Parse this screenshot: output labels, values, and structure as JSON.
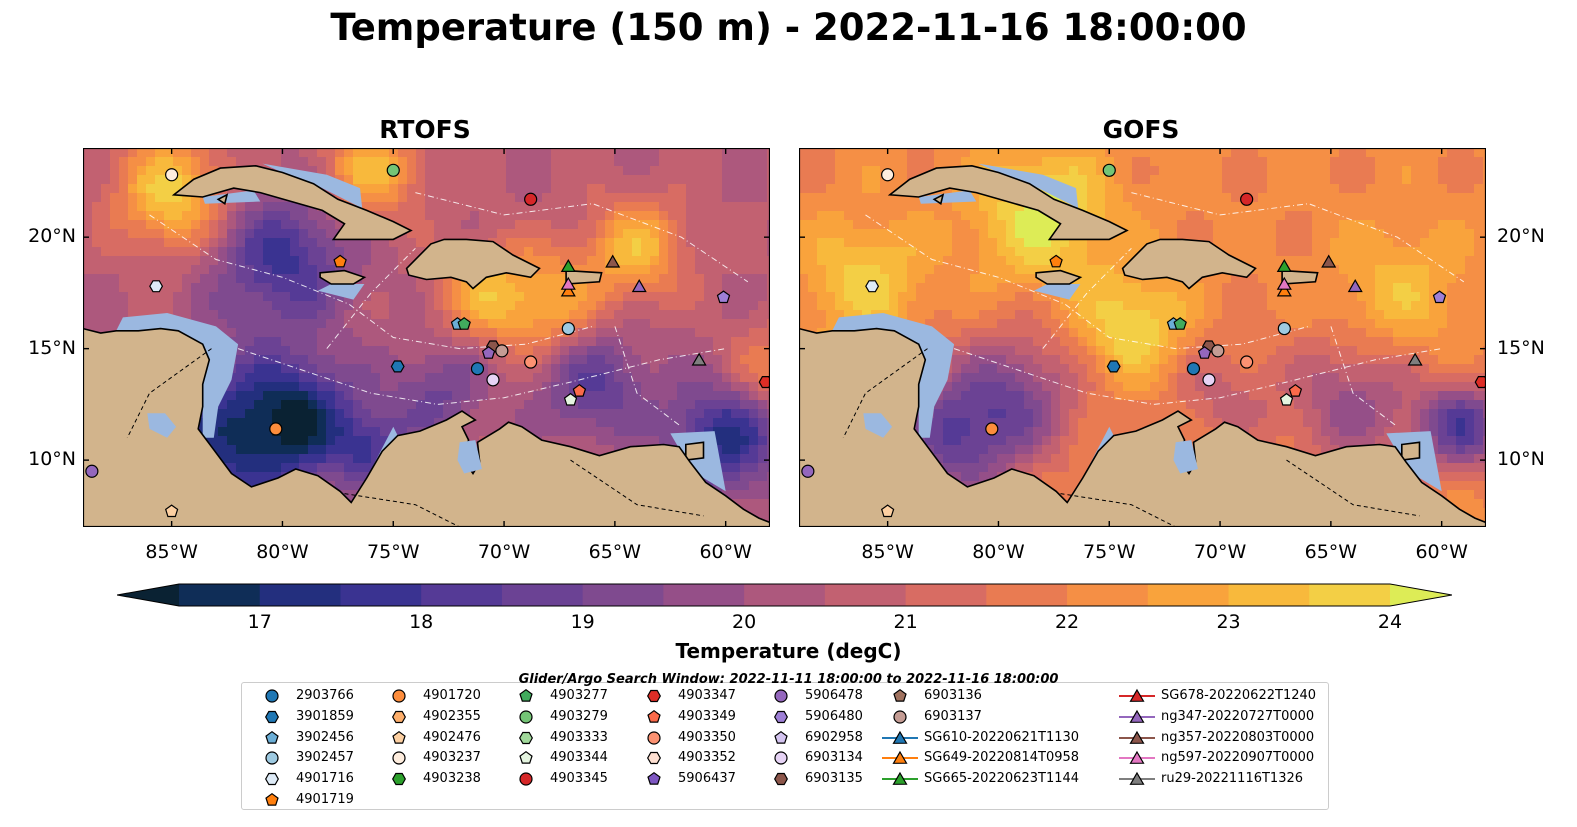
{
  "title": "Temperature (150 m) - 2022-11-16 18:00:00",
  "panels": [
    {
      "title": "RTOFS"
    },
    {
      "title": "GOFS"
    }
  ],
  "map": {
    "lon_ticks": [
      "85°W",
      "80°W",
      "75°W",
      "70°W",
      "65°W",
      "60°W"
    ],
    "lat_ticks": [
      "20°N",
      "15°N",
      "10°N"
    ],
    "lon_range": [
      -89,
      -58
    ],
    "lat_range": [
      7,
      24
    ],
    "land_color": "#d2b48c",
    "shelf_color": "#9bb8e0"
  },
  "colorbar": {
    "label": "Temperature (degC)",
    "ticks": [
      "17",
      "18",
      "19",
      "20",
      "21",
      "22",
      "23",
      "24"
    ],
    "range": [
      17,
      24.5
    ],
    "colors": [
      "#0a2233",
      "#0f2d57",
      "#232f7e",
      "#3a3391",
      "#553a96",
      "#6b4294",
      "#7f4a8f",
      "#954f88",
      "#ad587d",
      "#c26171",
      "#d86c63",
      "#e97b52",
      "#f58f45",
      "#f9a33c",
      "#f8b93c",
      "#f3cf45",
      "#ddec56"
    ]
  },
  "search_window": "Glider/Argo Search Window: 2022-11-11 18:00:00 to 2022-11-16 18:00:00",
  "legend": {
    "columns": [
      [
        {
          "label": "2903766",
          "marker": "circle",
          "color": "#1f77b4"
        },
        {
          "label": "3901859",
          "marker": "hexagon",
          "color": "#1f77b4"
        },
        {
          "label": "3902456",
          "marker": "pentagon",
          "color": "#6baed6"
        },
        {
          "label": "3902457",
          "marker": "circle",
          "color": "#9ecae1"
        },
        {
          "label": "4901716",
          "marker": "hexagon",
          "color": "#deebf7"
        },
        {
          "label": "4901719",
          "marker": "pentagon",
          "color": "#ff7f0e"
        }
      ],
      [
        {
          "label": "4901720",
          "marker": "circle",
          "color": "#fd8d3c"
        },
        {
          "label": "4902355",
          "marker": "hexagon",
          "color": "#fdae6b"
        },
        {
          "label": "4902476",
          "marker": "pentagon",
          "color": "#fdd0a2"
        },
        {
          "label": "4903237",
          "marker": "circle",
          "color": "#feedde"
        },
        {
          "label": "4903238",
          "marker": "hexagon",
          "color": "#2ca02c"
        }
      ],
      [
        {
          "label": "4903277",
          "marker": "pentagon",
          "color": "#41ab5d"
        },
        {
          "label": "4903279",
          "marker": "circle",
          "color": "#74c476"
        },
        {
          "label": "4903333",
          "marker": "hexagon",
          "color": "#a1d99b"
        },
        {
          "label": "4903344",
          "marker": "pentagon",
          "color": "#e5f5e0"
        },
        {
          "label": "4903345",
          "marker": "circle",
          "color": "#d62728"
        }
      ],
      [
        {
          "label": "4903347",
          "marker": "hexagon",
          "color": "#de2d26"
        },
        {
          "label": "4903349",
          "marker": "pentagon",
          "color": "#fb6a4a"
        },
        {
          "label": "4903350",
          "marker": "circle",
          "color": "#fc9272"
        },
        {
          "label": "4903352",
          "marker": "hexagon",
          "color": "#fee0d2"
        },
        {
          "label": "5906437",
          "marker": "pentagon",
          "color": "#7e57c2"
        }
      ],
      [
        {
          "label": "5906478",
          "marker": "circle",
          "color": "#9467bd"
        },
        {
          "label": "5906480",
          "marker": "hexagon",
          "color": "#9e7fd6"
        },
        {
          "label": "6902958",
          "marker": "pentagon",
          "color": "#d4c4f0"
        },
        {
          "label": "6903134",
          "marker": "circle",
          "color": "#e6d3f5"
        },
        {
          "label": "6903135",
          "marker": "hexagon",
          "color": "#8c564b"
        }
      ],
      [
        {
          "label": "6903136",
          "marker": "pentagon",
          "color": "#a0725f"
        },
        {
          "label": "6903137",
          "marker": "circle",
          "color": "#c49c94"
        },
        {
          "label": "SG610-20220621T1130",
          "marker": "triangle-line",
          "color": "#1f77b4"
        },
        {
          "label": "SG649-20220814T0958",
          "marker": "triangle-line",
          "color": "#ff7f0e"
        },
        {
          "label": "SG665-20220623T1144",
          "marker": "triangle-line",
          "color": "#2ca02c"
        }
      ],
      [
        {
          "label": "SG678-20220622T1240",
          "marker": "triangle-line",
          "color": "#d62728"
        },
        {
          "label": "ng347-20220727T0000",
          "marker": "triangle-line",
          "color": "#9467bd"
        },
        {
          "label": "ng357-20220803T0000",
          "marker": "triangle-line",
          "color": "#8c564b"
        },
        {
          "label": "ng597-20220907T0000",
          "marker": "triangle-line",
          "color": "#e377c2"
        },
        {
          "label": "ru29-20221116T1326",
          "marker": "triangle-line",
          "color": "#7f7f7f"
        }
      ]
    ]
  },
  "observations": [
    {
      "lon": -85.0,
      "lat": 22.8,
      "marker": "circle",
      "color": "#feedde"
    },
    {
      "lon": -75.0,
      "lat": 23.0,
      "marker": "circle",
      "color": "#74c476"
    },
    {
      "lon": -68.8,
      "lat": 21.7,
      "marker": "circle",
      "color": "#d62728"
    },
    {
      "lon": -85.7,
      "lat": 17.8,
      "marker": "hexagon",
      "color": "#deebf7"
    },
    {
      "lon": -77.4,
      "lat": 18.9,
      "marker": "pentagon",
      "color": "#ff7f0e"
    },
    {
      "lon": -72.1,
      "lat": 16.1,
      "marker": "pentagon",
      "color": "#6baed6"
    },
    {
      "lon": -71.8,
      "lat": 16.1,
      "marker": "pentagon",
      "color": "#41ab5d"
    },
    {
      "lon": -67.1,
      "lat": 15.9,
      "marker": "circle",
      "color": "#9ecae1"
    },
    {
      "lon": -60.1,
      "lat": 17.3,
      "marker": "pentagon",
      "color": "#9e7fd6"
    },
    {
      "lon": -74.8,
      "lat": 14.2,
      "marker": "hexagon",
      "color": "#1f77b4"
    },
    {
      "lon": -71.2,
      "lat": 14.1,
      "marker": "circle",
      "color": "#1f77b4"
    },
    {
      "lon": -70.5,
      "lat": 15.1,
      "marker": "hexagon",
      "color": "#8c564b"
    },
    {
      "lon": -70.1,
      "lat": 14.9,
      "marker": "circle",
      "color": "#c49c94"
    },
    {
      "lon": -70.7,
      "lat": 14.8,
      "marker": "pentagon",
      "color": "#9467bd"
    },
    {
      "lon": -70.5,
      "lat": 13.6,
      "marker": "circle",
      "color": "#e6d3f5"
    },
    {
      "lon": -68.8,
      "lat": 14.4,
      "marker": "circle",
      "color": "#fc9272"
    },
    {
      "lon": -66.6,
      "lat": 13.1,
      "marker": "pentagon",
      "color": "#fb6a4a"
    },
    {
      "lon": -67.0,
      "lat": 12.7,
      "marker": "pentagon",
      "color": "#e5f5e0"
    },
    {
      "lon": -80.3,
      "lat": 11.4,
      "marker": "circle",
      "color": "#fd8d3c"
    },
    {
      "lon": -88.6,
      "lat": 9.5,
      "marker": "circle",
      "color": "#9467bd"
    },
    {
      "lon": -85.0,
      "lat": 7.7,
      "marker": "pentagon",
      "color": "#fdd0a2"
    },
    {
      "lon": -58.2,
      "lat": 13.5,
      "marker": "hexagon",
      "color": "#de2d26"
    },
    {
      "lon": -67.1,
      "lat": 18.7,
      "marker": "triangle",
      "color": "#2ca02c"
    },
    {
      "lon": -67.1,
      "lat": 17.6,
      "marker": "triangle",
      "color": "#ff7f0e"
    },
    {
      "lon": -67.1,
      "lat": 17.9,
      "marker": "triangle",
      "color": "#e377c2"
    },
    {
      "lon": -65.1,
      "lat": 18.9,
      "marker": "triangle",
      "color": "#8c564b"
    },
    {
      "lon": -63.9,
      "lat": 17.8,
      "marker": "triangle",
      "color": "#9467bd"
    },
    {
      "lon": -61.2,
      "lat": 14.5,
      "marker": "triangle",
      "color": "#7f7f7f"
    }
  ]
}
